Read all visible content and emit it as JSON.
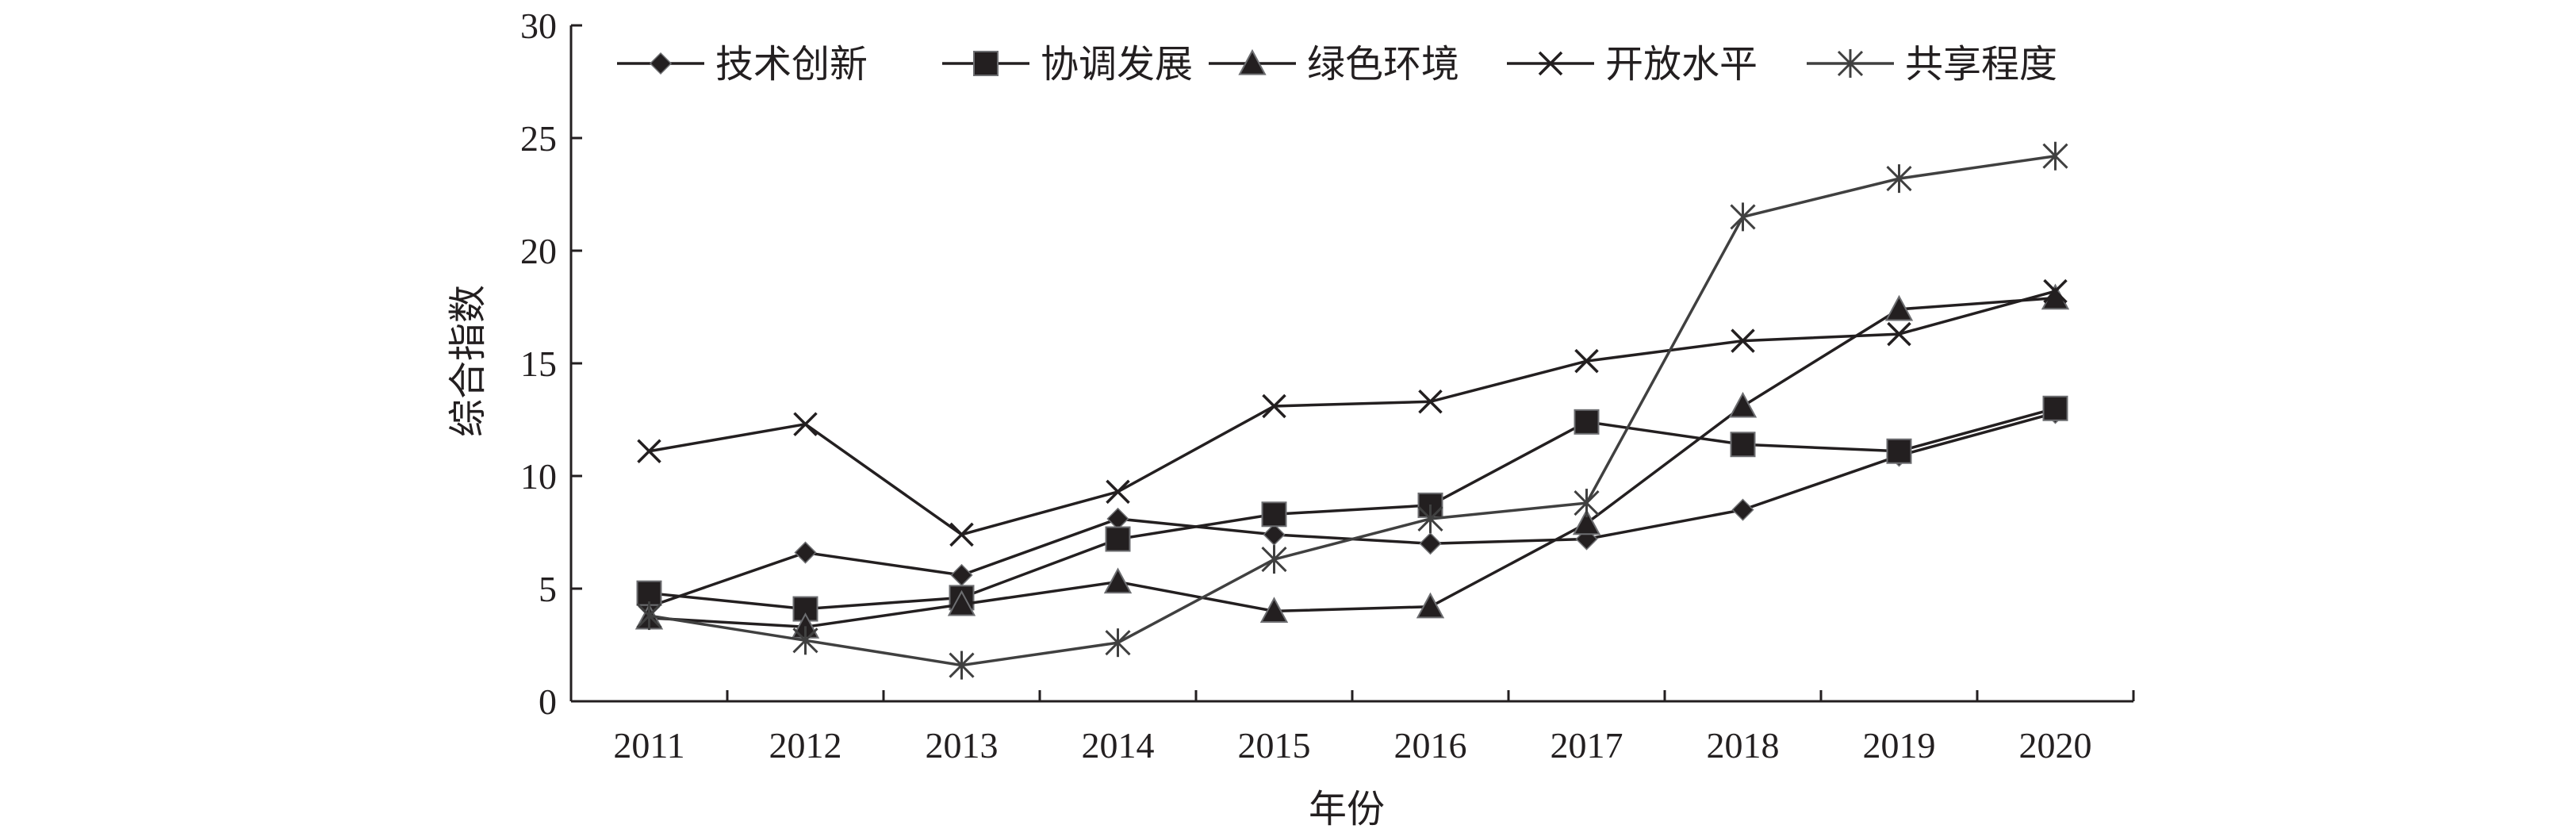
{
  "chart_data": {
    "type": "line",
    "title": "",
    "xlabel": "年份",
    "ylabel": "综合指数",
    "categories": [
      "2011",
      "2012",
      "2013",
      "2014",
      "2015",
      "2016",
      "2017",
      "2018",
      "2019",
      "2020"
    ],
    "ylim": [
      0,
      30
    ],
    "yticks": [
      "0",
      "5",
      "10",
      "15",
      "20",
      "25",
      "30"
    ],
    "grid": false,
    "legend_position": "top",
    "series": [
      {
        "name": "技术创新",
        "marker": "diamond",
        "line_color": "#231f20",
        "values": [
          4.2,
          6.6,
          5.6,
          8.1,
          7.4,
          7.0,
          7.2,
          8.5,
          10.9,
          12.8
        ]
      },
      {
        "name": "协调发展",
        "marker": "square",
        "line_color": "#231f20",
        "values": [
          4.8,
          4.1,
          4.6,
          7.2,
          8.3,
          8.7,
          12.4,
          11.4,
          11.1,
          13.0
        ]
      },
      {
        "name": "绿色环境",
        "marker": "triangle",
        "line_color": "#231f20",
        "values": [
          3.7,
          3.3,
          4.3,
          5.3,
          4.0,
          4.2,
          7.9,
          13.1,
          17.4,
          17.9
        ]
      },
      {
        "name": "开放水平",
        "marker": "x",
        "line_color": "#231f20",
        "values": [
          11.1,
          12.3,
          7.4,
          9.3,
          13.1,
          13.3,
          15.1,
          16.0,
          16.3,
          18.2
        ]
      },
      {
        "name": "共享程度",
        "marker": "star",
        "line_color": "#404040",
        "values": [
          3.8,
          2.7,
          1.6,
          2.6,
          6.3,
          8.1,
          8.8,
          21.5,
          23.2,
          24.2
        ]
      }
    ]
  }
}
